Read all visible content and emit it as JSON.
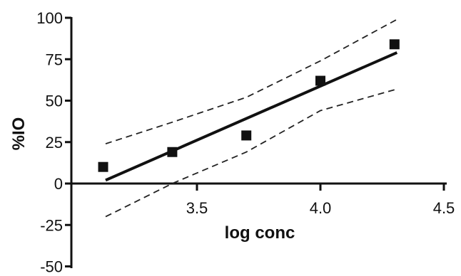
{
  "chart_data": {
    "type": "scatter",
    "title": "",
    "xlabel": "log conc",
    "ylabel": "%IO",
    "xlim": [
      3.0,
      4.5
    ],
    "ylim": [
      -50,
      100
    ],
    "xticks": [
      3.5,
      4.0,
      4.5
    ],
    "xtick_labels": [
      "3.5",
      "4.0",
      "4.5"
    ],
    "yticks": [
      -50,
      -25,
      0,
      25,
      50,
      75,
      100
    ],
    "ytick_labels": [
      "-50",
      "-25",
      "0",
      "25",
      "50",
      "75",
      "100"
    ],
    "grid": false,
    "legend": "none",
    "colors": {
      "marks": "#111111",
      "background": "#ffffff"
    },
    "series": [
      {
        "kind": "points",
        "marker": "square",
        "x": [
          3.12,
          3.4,
          3.7,
          4.0,
          4.3
        ],
        "y": [
          10,
          19,
          29,
          62,
          84
        ]
      },
      {
        "kind": "fit-line",
        "style": "solid",
        "x": [
          3.13,
          4.31
        ],
        "y": [
          2,
          79
        ]
      },
      {
        "kind": "confidence-band-upper",
        "style": "dashed",
        "x": [
          3.13,
          3.4,
          3.7,
          4.0,
          4.31
        ],
        "y": [
          24,
          37,
          52,
          74,
          99
        ]
      },
      {
        "kind": "confidence-band-lower",
        "style": "dashed",
        "x": [
          3.13,
          3.4,
          3.7,
          4.0,
          4.31
        ],
        "y": [
          -20,
          0,
          19,
          44,
          57
        ]
      }
    ]
  }
}
